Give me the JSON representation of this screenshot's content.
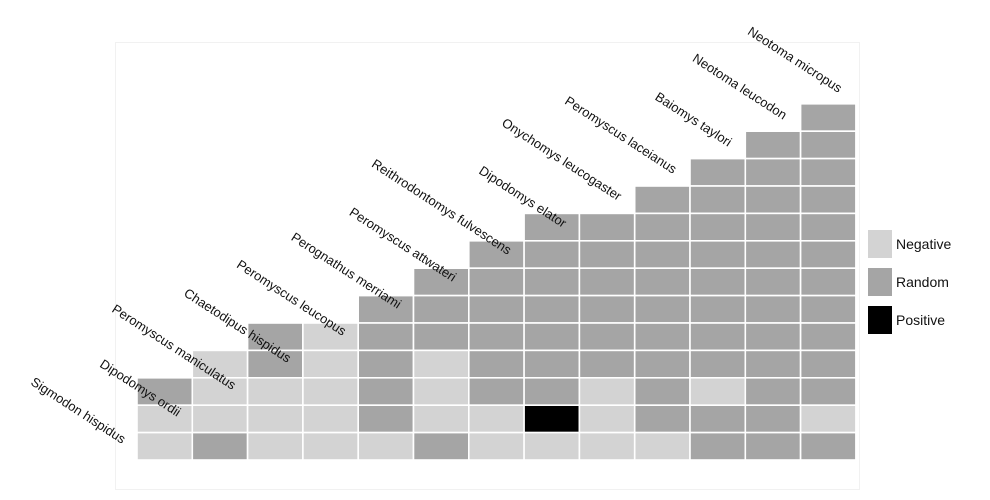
{
  "chart_data": {
    "type": "heatmap",
    "title": "",
    "species": [
      "Sigmodon hispidus",
      "Dipodomys ordii",
      "Peromyscus maniculatus",
      "Chaetodipus hispidus",
      "Peromyscus  leucopus",
      "Perognathus merriami",
      "Peromyscus attwateri",
      "Reithrodontomys fulvescens",
      "Dipodomys elator",
      "Onychomys leucogaster",
      "Peromyscus laceianus",
      "Baiomys taylori",
      "Neotoma leucodon",
      "Neotoma micropus"
    ],
    "legend": [
      {
        "key": "N",
        "label": "Negative",
        "color": "#d3d3d3"
      },
      {
        "key": "R",
        "label": "Random",
        "color": "#a5a5a5"
      },
      {
        "key": "P",
        "label": "Positive",
        "color": "#000000"
      }
    ],
    "rows": [
      "R",
      "RR",
      "RRR",
      "RRRR",
      "RRRRRR",
      "RRRRRRR",
      "RRRRRRRR",
      "RRRRRRRRR",
      "RNRRRRRRRRR",
      "NRNRNRRRRRRR",
      "RNNNRNRRNRNRR",
      "NNNNRNNPNRRRN",
      "NRNNNRNNNNRRR"
    ],
    "legend_placement": "right"
  }
}
